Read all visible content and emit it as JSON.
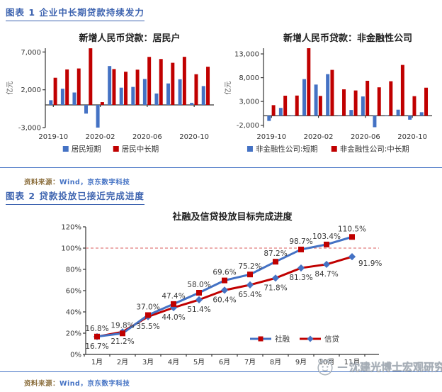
{
  "figure1": {
    "header": "图表 1 企业中长期贷款持续发力",
    "source_label": "资料来源：",
    "source_value": "Wind，京东数字科技"
  },
  "figure2": {
    "header": "图表 2 贷款投放已接近完成进度",
    "source_label": "资料来源：",
    "source_value": "Wind，京东数字科技"
  },
  "watermark": {
    "dash": "—",
    "text": "沈建光博士宏观研究"
  },
  "colors": {
    "blue": "#4472C4",
    "red": "#C00000",
    "header_blue": "#3E64B0",
    "separator_blue": "#4472C4",
    "source_label_brown": "#8A6D3B",
    "reference_dashed_red": "#E07C7C",
    "watermark_gray": "#A5ADB6"
  },
  "chart_data": [
    {
      "type": "bar",
      "title": "新增人民币贷款：居民户",
      "ylabel": "亿元",
      "xlabel": "",
      "categories": [
        "2019-10",
        "2019-11",
        "2019-12",
        "2020-01",
        "2020-02",
        "2020-03",
        "2020-04",
        "2020-05",
        "2020-06",
        "2020-07",
        "2020-08",
        "2020-09",
        "2020-10",
        "2020-11"
      ],
      "series": [
        {
          "name": "居民短期",
          "color": "#4472C4",
          "values": [
            620,
            2140,
            1640,
            -1150,
            -4500,
            5140,
            2280,
            2380,
            3430,
            1510,
            2840,
            3390,
            270,
            2490
          ]
        },
        {
          "name": "居民中长期",
          "color": "#C00000",
          "values": [
            3590,
            4690,
            4820,
            7490,
            370,
            4740,
            4390,
            4660,
            6350,
            6070,
            5570,
            6360,
            4060,
            5050
          ]
        }
      ],
      "ylim": [
        -3000,
        7500
      ],
      "yticks": [
        7000,
        2000,
        -3000
      ],
      "xtick_labels": [
        "2019-10",
        "2020-02",
        "2020-06",
        "2020-10"
      ],
      "xtick_indices": [
        0,
        4,
        8,
        12
      ],
      "grid": false,
      "legend_position": "bottom"
    },
    {
      "type": "bar",
      "title": "新增人民币贷款：非金融性公司",
      "ylabel": "亿元",
      "xlabel": "",
      "categories": [
        "2019-10",
        "2019-11",
        "2019-12",
        "2020-01",
        "2020-02",
        "2020-03",
        "2020-04",
        "2020-05",
        "2020-06",
        "2020-07",
        "2020-08",
        "2020-09",
        "2020-10",
        "2020-11"
      ],
      "series": [
        {
          "name": "非金融性公司:短期",
          "color": "#4472C4",
          "values": [
            -1100,
            1640,
            40,
            7700,
            6550,
            8750,
            -60,
            1210,
            4050,
            -2420,
            50,
            1270,
            -840,
            730
          ]
        },
        {
          "name": "非金融性公司:中长期",
          "color": "#C00000",
          "values": [
            2220,
            4210,
            4240,
            16600,
            4160,
            9640,
            5550,
            5310,
            7350,
            5970,
            7250,
            10680,
            4110,
            5890
          ]
        }
      ],
      "ylim": [
        -2500,
        14200
      ],
      "yticks": [
        13000,
        8000,
        3000,
        -2000
      ],
      "xtick_labels": [
        "2019-10",
        "2020-02",
        "2020-06",
        "2020-10"
      ],
      "xtick_indices": [
        0,
        4,
        8,
        12
      ],
      "grid": false,
      "legend_position": "bottom"
    },
    {
      "type": "line",
      "title": "社融及信贷投放目标完成进度",
      "xlabel": "",
      "ylabel": "",
      "categories": [
        "1月",
        "2月",
        "3月",
        "4月",
        "5月",
        "6月",
        "7月",
        "8月",
        "9月",
        "10月",
        "11月"
      ],
      "series": [
        {
          "name": "信贷",
          "line_color": "#C00000",
          "marker": "diamond",
          "marker_color": "#4472C4",
          "label_position": "below",
          "values": [
            16.7,
            21.2,
            35.5,
            44.0,
            51.4,
            60.4,
            65.4,
            71.8,
            81.3,
            84.7,
            91.9
          ]
        },
        {
          "name": "社融",
          "line_color": "#4472C4",
          "marker": "square",
          "marker_color": "#C00000",
          "label_position": "above",
          "values": [
            16.8,
            19.8,
            37.0,
            47.4,
            58.0,
            69.6,
            75.2,
            87.2,
            98.7,
            103.4,
            110.5
          ]
        }
      ],
      "ylim": [
        0,
        120
      ],
      "yticks": [
        0,
        20,
        40,
        60,
        80,
        100,
        120
      ],
      "reference_line": {
        "value": 100,
        "style": "dashed",
        "color": "#E07C7C"
      },
      "grid": false,
      "legend_position": "bottom-inside",
      "legend_order": [
        "社融",
        "信贷"
      ]
    }
  ]
}
